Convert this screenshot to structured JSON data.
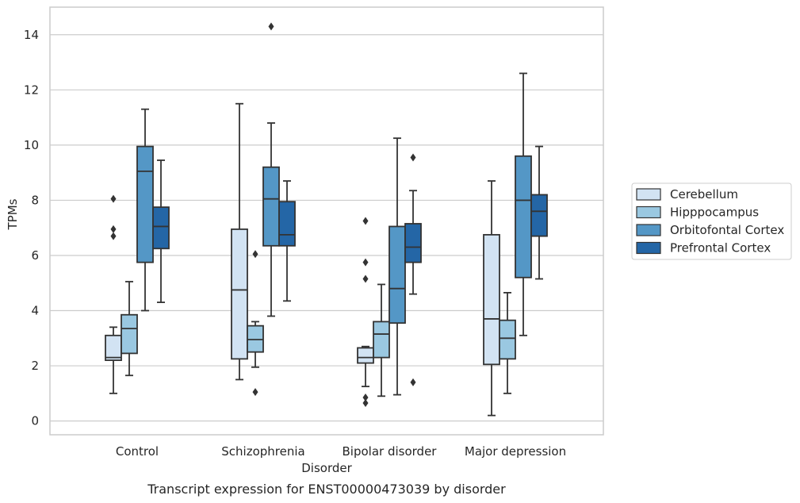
{
  "caption": "Transcript expression for ENST00000473039 by disorder",
  "chart_data": {
    "type": "box",
    "xlabel": "Disorder",
    "ylabel": "TPMs",
    "ylim": [
      -0.5,
      15
    ],
    "yticks": [
      0,
      2,
      4,
      6,
      8,
      10,
      12,
      14
    ],
    "grid": true,
    "legend_position": "right",
    "categories": [
      "Control",
      "Schizophrenia",
      "Bipolar disorder",
      "Major depression"
    ],
    "series": [
      {
        "name": "Cerebellum",
        "color": "#d2e3f3",
        "boxes": [
          {
            "whisker_low": 1.0,
            "q1": 2.2,
            "median": 2.3,
            "q3": 3.1,
            "whisker_high": 3.4,
            "outliers": [
              6.7,
              6.95,
              8.05
            ]
          },
          {
            "whisker_low": 1.5,
            "q1": 2.25,
            "median": 4.75,
            "q3": 6.95,
            "whisker_high": 11.5,
            "outliers": []
          },
          {
            "whisker_low": 1.25,
            "q1": 2.1,
            "median": 2.3,
            "q3": 2.65,
            "whisker_high": 2.7,
            "outliers": [
              0.65,
              0.85,
              5.15,
              5.75,
              7.25
            ]
          },
          {
            "whisker_low": 0.2,
            "q1": 2.05,
            "median": 3.7,
            "q3": 6.75,
            "whisker_high": 8.7,
            "outliers": []
          }
        ]
      },
      {
        "name": "Hipppocampus",
        "color": "#9ac8e1",
        "boxes": [
          {
            "whisker_low": 1.65,
            "q1": 2.45,
            "median": 3.35,
            "q3": 3.85,
            "whisker_high": 5.05,
            "outliers": []
          },
          {
            "whisker_low": 1.95,
            "q1": 2.5,
            "median": 2.95,
            "q3": 3.45,
            "whisker_high": 3.6,
            "outliers": [
              1.05,
              6.05
            ]
          },
          {
            "whisker_low": 0.9,
            "q1": 2.3,
            "median": 3.15,
            "q3": 3.6,
            "whisker_high": 4.95,
            "outliers": []
          },
          {
            "whisker_low": 1.0,
            "q1": 2.25,
            "median": 3.0,
            "q3": 3.65,
            "whisker_high": 4.65,
            "outliers": []
          }
        ]
      },
      {
        "name": "Orbitofontal Cortex",
        "color": "#5497c6",
        "boxes": [
          {
            "whisker_low": 4.0,
            "q1": 5.75,
            "median": 9.05,
            "q3": 9.95,
            "whisker_high": 11.3,
            "outliers": []
          },
          {
            "whisker_low": 3.8,
            "q1": 6.35,
            "median": 8.05,
            "q3": 9.2,
            "whisker_high": 10.8,
            "outliers": [
              14.3
            ]
          },
          {
            "whisker_low": 0.95,
            "q1": 3.55,
            "median": 4.8,
            "q3": 7.05,
            "whisker_high": 10.25,
            "outliers": []
          },
          {
            "whisker_low": 3.1,
            "q1": 5.2,
            "median": 8.0,
            "q3": 9.6,
            "whisker_high": 12.6,
            "outliers": []
          }
        ]
      },
      {
        "name": "Prefrontal Cortex",
        "color": "#2466a6",
        "boxes": [
          {
            "whisker_low": 4.3,
            "q1": 6.25,
            "median": 7.05,
            "q3": 7.75,
            "whisker_high": 9.45,
            "outliers": []
          },
          {
            "whisker_low": 4.35,
            "q1": 6.35,
            "median": 6.75,
            "q3": 7.95,
            "whisker_high": 8.7,
            "outliers": []
          },
          {
            "whisker_low": 4.6,
            "q1": 5.75,
            "median": 6.3,
            "q3": 7.15,
            "whisker_high": 8.35,
            "outliers": [
              1.4,
              9.55
            ]
          },
          {
            "whisker_low": 5.15,
            "q1": 6.7,
            "median": 7.6,
            "q3": 8.2,
            "whisker_high": 9.95,
            "outliers": []
          }
        ]
      }
    ]
  }
}
